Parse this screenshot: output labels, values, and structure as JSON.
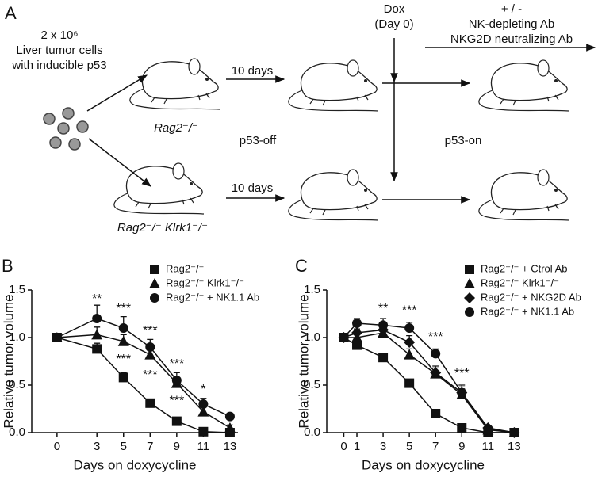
{
  "panel_a": {
    "panel": "A",
    "cells_count": "2 x 10⁶",
    "cells_line1": "Liver tumor cells",
    "cells_line2": "with inducible p53",
    "strain_top": "Rag2⁻/⁻",
    "strain_bottom": "Rag2⁻/⁻ Klrk1⁻/⁻",
    "interval_top": "10 days",
    "interval_bottom": "10 days",
    "state_off": "p53-off",
    "state_on": "p53-on",
    "dox": "Dox",
    "dox_day": "(Day 0)",
    "treatment_sign": "+ / -",
    "treatment_1": "NK-depleting Ab",
    "treatment_2": "NKG2D neutralizing Ab"
  },
  "chart_data": [
    {
      "type": "line",
      "panel": "B",
      "ylabel": "Relative tumor volume",
      "xlabel": "Days on doxycycline",
      "xlim": [
        -1.9,
        13.6
      ],
      "ylim": [
        0,
        1.5
      ],
      "xticks": [
        0,
        3,
        5,
        7,
        9,
        11,
        13
      ],
      "yticks": [
        {
          "value": 0,
          "label": "0.0"
        },
        0.5,
        {
          "value": 1,
          "label": "1.0"
        },
        1.5
      ],
      "x": [
        0,
        3,
        5,
        7,
        9,
        11,
        13
      ],
      "series": [
        {
          "name": "Rag2⁻/⁻",
          "color": "#111111",
          "marker": "square",
          "values": [
            1.0,
            0.88,
            0.58,
            0.31,
            0.12,
            0.01,
            0.0
          ],
          "errors": [
            0,
            0.06,
            0.05,
            0.03,
            0.02,
            0.01,
            0
          ]
        },
        {
          "name": "Rag2⁻/⁻ Klrk1⁻/⁻",
          "color": "#111111",
          "marker": "triangle",
          "values": [
            1.0,
            1.03,
            0.96,
            0.82,
            0.52,
            0.22,
            0.05
          ],
          "errors": [
            0,
            0.08,
            0.07,
            0.07,
            0.06,
            0.05,
            0.03
          ]
        },
        {
          "name": "Rag2⁻/⁻ + NK1.1 Ab",
          "color": "#111111",
          "marker": "circle",
          "values": [
            1.0,
            1.2,
            1.1,
            0.9,
            0.55,
            0.3,
            0.17
          ],
          "errors": [
            0,
            0.14,
            0.12,
            0.08,
            0.08,
            0.06,
            0.03
          ]
        }
      ],
      "annotations": [
        {
          "text": "**",
          "x": 3,
          "y": 1.4
        },
        {
          "text": "***",
          "x": 5,
          "y": 1.3
        },
        {
          "text": "***",
          "x": 7,
          "y": 1.07
        },
        {
          "text": "***",
          "x": 9,
          "y": 0.72
        },
        {
          "text": "*",
          "x": 11,
          "y": 0.45
        },
        {
          "text": "***",
          "x": 5,
          "y": 0.77
        },
        {
          "text": "***",
          "x": 7,
          "y": 0.6
        },
        {
          "text": "***",
          "x": 9,
          "y": 0.33
        }
      ]
    },
    {
      "type": "line",
      "panel": "C",
      "ylabel": "Relative tumor volume",
      "xlabel": "Days on doxycycline",
      "xlim": [
        -1.3,
        13.4
      ],
      "ylim": [
        0,
        1.5
      ],
      "xticks": [
        0,
        1,
        3,
        5,
        7,
        9,
        11,
        13
      ],
      "yticks": [
        {
          "value": 0,
          "label": "0.0"
        },
        0.5,
        {
          "value": 1,
          "label": "1.0"
        },
        1.5
      ],
      "x": [
        0,
        1,
        3,
        5,
        7,
        9,
        11,
        13
      ],
      "series": [
        {
          "name": "Rag2⁻/⁻ + Ctrol Ab",
          "color": "#111111",
          "marker": "square",
          "values": [
            1.0,
            0.92,
            0.79,
            0.52,
            0.2,
            0.05,
            0.0,
            0.0
          ],
          "errors": [
            0,
            0.03,
            0.03,
            0.03,
            0.02,
            0.01,
            0,
            0
          ]
        },
        {
          "name": "Rag2⁻/⁻ Klrk1⁻/⁻",
          "color": "#111111",
          "marker": "triangle",
          "values": [
            1.0,
            1.0,
            1.05,
            0.82,
            0.62,
            0.4,
            0.03,
            0.0
          ],
          "errors": [
            0,
            0.04,
            0.06,
            0.06,
            0.06,
            0.06,
            0.02,
            0
          ]
        },
        {
          "name": "Rag2⁻/⁻ + NKG2D Ab",
          "color": "#111111",
          "marker": "diamond",
          "values": [
            1.0,
            1.05,
            1.08,
            0.95,
            0.63,
            0.42,
            0.05,
            0.0
          ],
          "errors": [
            0,
            0.04,
            0.06,
            0.07,
            0.07,
            0.06,
            0.02,
            0
          ]
        },
        {
          "name": "Rag2⁻/⁻ + NK1.1 Ab",
          "color": "#111111",
          "marker": "circle",
          "values": [
            1.0,
            1.15,
            1.13,
            1.1,
            0.83,
            0.42,
            0.04,
            0.0
          ],
          "errors": [
            0,
            0.05,
            0.07,
            0.06,
            0.05,
            0.08,
            0.02,
            0
          ]
        }
      ],
      "annotations": [
        {
          "text": "**",
          "x": 3,
          "y": 1.3
        },
        {
          "text": "***",
          "x": 5,
          "y": 1.28
        },
        {
          "text": "***",
          "x": 7,
          "y": 1.0
        },
        {
          "text": "***",
          "x": 9,
          "y": 0.62
        }
      ]
    }
  ]
}
